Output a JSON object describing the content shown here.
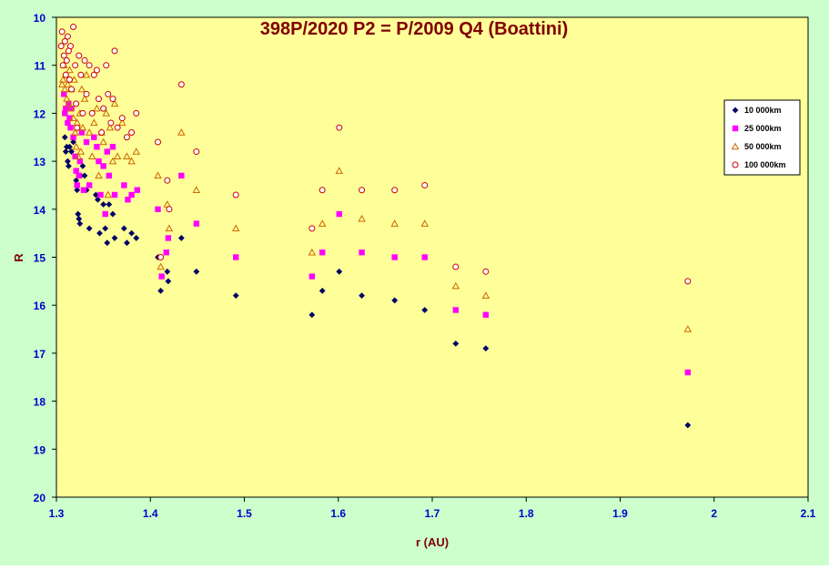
{
  "colors": {
    "outer_background": "#ccffcc",
    "plot_background": "#ffff99",
    "title": "#800000",
    "axis_text": "#0000cc",
    "axis_title": "#800000"
  },
  "chart_data": {
    "type": "scatter",
    "title": "398P/2020 P2 = P/2009 Q4 (Boattini)",
    "xlabel": "r (AU)",
    "ylabel": "R",
    "xlim": [
      1.3,
      2.1
    ],
    "ylim": [
      20,
      10
    ],
    "y_inverted": true,
    "grid": false,
    "legend_position": "right",
    "x_ticks": [
      "1.3",
      "1.4",
      "1.5",
      "1.6",
      "1.7",
      "1.8",
      "1.9",
      "2",
      "2.1"
    ],
    "y_ticks": [
      "10",
      "11",
      "12",
      "13",
      "14",
      "15",
      "16",
      "17",
      "18",
      "19",
      "20"
    ],
    "series": [
      {
        "name": "10 000km",
        "marker": "diamond",
        "color": "#000066",
        "points": [
          [
            1.309,
            12.5
          ],
          [
            1.31,
            12.8
          ],
          [
            1.311,
            12.7
          ],
          [
            1.312,
            13.0
          ],
          [
            1.313,
            13.1
          ],
          [
            1.314,
            12.7
          ],
          [
            1.316,
            12.8
          ],
          [
            1.318,
            12.6
          ],
          [
            1.32,
            12.9
          ],
          [
            1.321,
            13.4
          ],
          [
            1.322,
            13.6
          ],
          [
            1.323,
            14.1
          ],
          [
            1.324,
            14.2
          ],
          [
            1.325,
            14.3
          ],
          [
            1.326,
            13.3
          ],
          [
            1.328,
            13.1
          ],
          [
            1.33,
            13.3
          ],
          [
            1.332,
            13.6
          ],
          [
            1.335,
            14.4
          ],
          [
            1.342,
            13.7
          ],
          [
            1.344,
            13.8
          ],
          [
            1.346,
            14.5
          ],
          [
            1.35,
            13.9
          ],
          [
            1.352,
            14.4
          ],
          [
            1.354,
            14.7
          ],
          [
            1.356,
            13.9
          ],
          [
            1.36,
            14.1
          ],
          [
            1.362,
            14.6
          ],
          [
            1.372,
            14.4
          ],
          [
            1.375,
            14.7
          ],
          [
            1.38,
            14.5
          ],
          [
            1.385,
            14.6
          ],
          [
            1.408,
            15.0
          ],
          [
            1.411,
            15.7
          ],
          [
            1.418,
            15.3
          ],
          [
            1.419,
            15.5
          ],
          [
            1.433,
            14.6
          ],
          [
            1.449,
            15.3
          ],
          [
            1.491,
            15.8
          ],
          [
            1.572,
            16.2
          ],
          [
            1.583,
            15.7
          ],
          [
            1.601,
            15.3
          ],
          [
            1.625,
            15.8
          ],
          [
            1.66,
            15.9
          ],
          [
            1.692,
            16.1
          ],
          [
            1.725,
            16.8
          ],
          [
            1.757,
            16.9
          ],
          [
            1.972,
            18.5
          ]
        ]
      },
      {
        "name": "25 000km",
        "marker": "square",
        "color": "#ff00ff",
        "points": [
          [
            1.308,
            11.6
          ],
          [
            1.309,
            12.0
          ],
          [
            1.31,
            11.9
          ],
          [
            1.312,
            12.2
          ],
          [
            1.313,
            11.8
          ],
          [
            1.314,
            12.1
          ],
          [
            1.315,
            12.3
          ],
          [
            1.316,
            11.9
          ],
          [
            1.318,
            12.5
          ],
          [
            1.32,
            12.9
          ],
          [
            1.321,
            13.2
          ],
          [
            1.322,
            13.5
          ],
          [
            1.324,
            13.3
          ],
          [
            1.325,
            13.0
          ],
          [
            1.327,
            12.4
          ],
          [
            1.329,
            13.6
          ],
          [
            1.332,
            12.6
          ],
          [
            1.335,
            13.5
          ],
          [
            1.34,
            12.5
          ],
          [
            1.343,
            12.7
          ],
          [
            1.345,
            13.0
          ],
          [
            1.347,
            13.7
          ],
          [
            1.35,
            13.1
          ],
          [
            1.352,
            14.1
          ],
          [
            1.354,
            12.8
          ],
          [
            1.356,
            13.3
          ],
          [
            1.36,
            12.7
          ],
          [
            1.362,
            13.7
          ],
          [
            1.372,
            13.5
          ],
          [
            1.376,
            13.8
          ],
          [
            1.38,
            13.7
          ],
          [
            1.386,
            13.6
          ],
          [
            1.408,
            14.0
          ],
          [
            1.412,
            15.4
          ],
          [
            1.417,
            14.9
          ],
          [
            1.419,
            14.6
          ],
          [
            1.433,
            13.3
          ],
          [
            1.449,
            14.3
          ],
          [
            1.491,
            15.0
          ],
          [
            1.572,
            15.4
          ],
          [
            1.583,
            14.9
          ],
          [
            1.601,
            14.1
          ],
          [
            1.625,
            14.9
          ],
          [
            1.66,
            15.0
          ],
          [
            1.692,
            15.0
          ],
          [
            1.725,
            16.1
          ],
          [
            1.757,
            16.2
          ],
          [
            1.972,
            17.4
          ]
        ]
      },
      {
        "name": "50 000km",
        "marker": "triangle",
        "color": "#cc6600",
        "points": [
          [
            1.306,
            11.4
          ],
          [
            1.307,
            11.3
          ],
          [
            1.308,
            11.0
          ],
          [
            1.309,
            11.5
          ],
          [
            1.31,
            11.2
          ],
          [
            1.311,
            11.7
          ],
          [
            1.312,
            11.4
          ],
          [
            1.313,
            11.8
          ],
          [
            1.314,
            11.1
          ],
          [
            1.315,
            11.9
          ],
          [
            1.316,
            11.5
          ],
          [
            1.318,
            12.1
          ],
          [
            1.319,
            11.3
          ],
          [
            1.32,
            12.4
          ],
          [
            1.321,
            12.7
          ],
          [
            1.322,
            12.2
          ],
          [
            1.323,
            12.9
          ],
          [
            1.325,
            12.0
          ],
          [
            1.326,
            12.8
          ],
          [
            1.327,
            11.5
          ],
          [
            1.328,
            12.3
          ],
          [
            1.33,
            11.7
          ],
          [
            1.332,
            11.2
          ],
          [
            1.335,
            12.4
          ],
          [
            1.338,
            12.9
          ],
          [
            1.34,
            12.2
          ],
          [
            1.343,
            11.9
          ],
          [
            1.345,
            13.3
          ],
          [
            1.348,
            12.4
          ],
          [
            1.35,
            12.6
          ],
          [
            1.353,
            12.0
          ],
          [
            1.355,
            13.7
          ],
          [
            1.357,
            12.3
          ],
          [
            1.36,
            13.0
          ],
          [
            1.362,
            11.8
          ],
          [
            1.365,
            12.9
          ],
          [
            1.37,
            12.2
          ],
          [
            1.375,
            12.9
          ],
          [
            1.38,
            13.0
          ],
          [
            1.385,
            12.8
          ],
          [
            1.408,
            13.3
          ],
          [
            1.411,
            15.2
          ],
          [
            1.418,
            13.9
          ],
          [
            1.42,
            14.4
          ],
          [
            1.433,
            12.4
          ],
          [
            1.449,
            13.6
          ],
          [
            1.491,
            14.4
          ],
          [
            1.572,
            14.9
          ],
          [
            1.583,
            14.3
          ],
          [
            1.601,
            13.2
          ],
          [
            1.625,
            14.2
          ],
          [
            1.66,
            14.3
          ],
          [
            1.692,
            14.3
          ],
          [
            1.725,
            15.6
          ],
          [
            1.757,
            15.8
          ],
          [
            1.972,
            16.5
          ]
        ]
      },
      {
        "name": "100 000km",
        "marker": "circle",
        "color": "#cc0000",
        "points": [
          [
            1.305,
            10.6
          ],
          [
            1.306,
            10.3
          ],
          [
            1.307,
            11.0
          ],
          [
            1.308,
            10.8
          ],
          [
            1.309,
            10.5
          ],
          [
            1.31,
            11.2
          ],
          [
            1.311,
            10.9
          ],
          [
            1.312,
            10.4
          ],
          [
            1.313,
            10.7
          ],
          [
            1.314,
            11.3
          ],
          [
            1.315,
            10.6
          ],
          [
            1.316,
            11.5
          ],
          [
            1.318,
            10.2
          ],
          [
            1.32,
            11.0
          ],
          [
            1.321,
            11.8
          ],
          [
            1.322,
            12.3
          ],
          [
            1.324,
            10.8
          ],
          [
            1.326,
            11.2
          ],
          [
            1.328,
            12.0
          ],
          [
            1.33,
            10.9
          ],
          [
            1.332,
            11.6
          ],
          [
            1.335,
            11.0
          ],
          [
            1.338,
            12.0
          ],
          [
            1.34,
            11.2
          ],
          [
            1.343,
            11.1
          ],
          [
            1.345,
            11.7
          ],
          [
            1.348,
            12.4
          ],
          [
            1.35,
            11.9
          ],
          [
            1.353,
            11.0
          ],
          [
            1.355,
            11.6
          ],
          [
            1.358,
            12.2
          ],
          [
            1.36,
            11.7
          ],
          [
            1.362,
            10.7
          ],
          [
            1.365,
            12.3
          ],
          [
            1.37,
            12.1
          ],
          [
            1.375,
            12.5
          ],
          [
            1.38,
            12.4
          ],
          [
            1.385,
            12.0
          ],
          [
            1.408,
            12.6
          ],
          [
            1.411,
            15.0
          ],
          [
            1.418,
            13.4
          ],
          [
            1.42,
            14.0
          ],
          [
            1.433,
            11.4
          ],
          [
            1.449,
            12.8
          ],
          [
            1.491,
            13.7
          ],
          [
            1.572,
            14.4
          ],
          [
            1.583,
            13.6
          ],
          [
            1.601,
            12.3
          ],
          [
            1.625,
            13.6
          ],
          [
            1.66,
            13.6
          ],
          [
            1.692,
            13.5
          ],
          [
            1.725,
            15.2
          ],
          [
            1.757,
            15.3
          ],
          [
            1.972,
            15.5
          ]
        ]
      }
    ]
  }
}
